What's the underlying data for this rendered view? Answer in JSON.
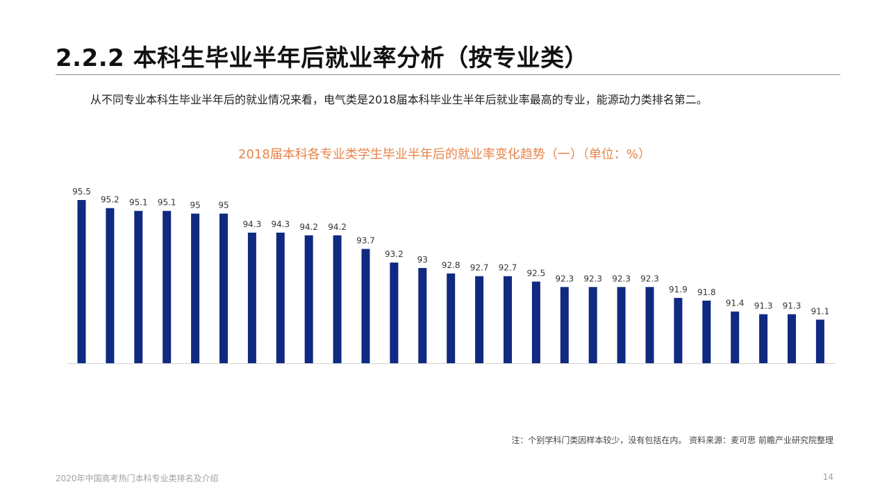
{
  "header": {
    "title": "2.2.2 本科生毕业半年后就业率分析（按专业类）",
    "summary": "从不同专业本科生毕业半年后的就业情况来看，电气类是2018届本科毕业生半年后就业率最高的专业，能源动力类排名第二。"
  },
  "chart_data": {
    "type": "bar",
    "title": "2018届本科各专业类学生毕业半年后的就业率变化趋势（一）（单位：%）",
    "values": [
      95.5,
      95.2,
      95.1,
      95.1,
      95,
      95,
      94.3,
      94.3,
      94.2,
      94.2,
      93.7,
      93.2,
      93,
      92.8,
      92.7,
      92.7,
      92.5,
      92.3,
      92.3,
      92.3,
      92.3,
      91.9,
      91.8,
      91.4,
      91.3,
      91.3,
      91.1
    ],
    "labels": [
      "95.5",
      "95.2",
      "95.1",
      "95.1",
      "95",
      "95",
      "94.3",
      "94.3",
      "94.2",
      "94.2",
      "93.7",
      "93.2",
      "93",
      "92.8",
      "92.7",
      "92.7",
      "92.5",
      "92.3",
      "92.3",
      "92.3",
      "92.3",
      "91.9",
      "91.8",
      "91.4",
      "91.3",
      "91.3",
      "91.1"
    ],
    "ylim": [
      89.5,
      95.8
    ],
    "bar_color": "#0f2a80",
    "axis_color": "#d0d0d0",
    "grid": false,
    "legend": "none"
  },
  "footnote": "注：个别学科门类因样本较少，没有包括在内。 资料来源：麦可思 前瞻产业研究院整理",
  "footer": {
    "left": "2020年中国高考热门本科专业类排名及介绍",
    "page": "14"
  }
}
